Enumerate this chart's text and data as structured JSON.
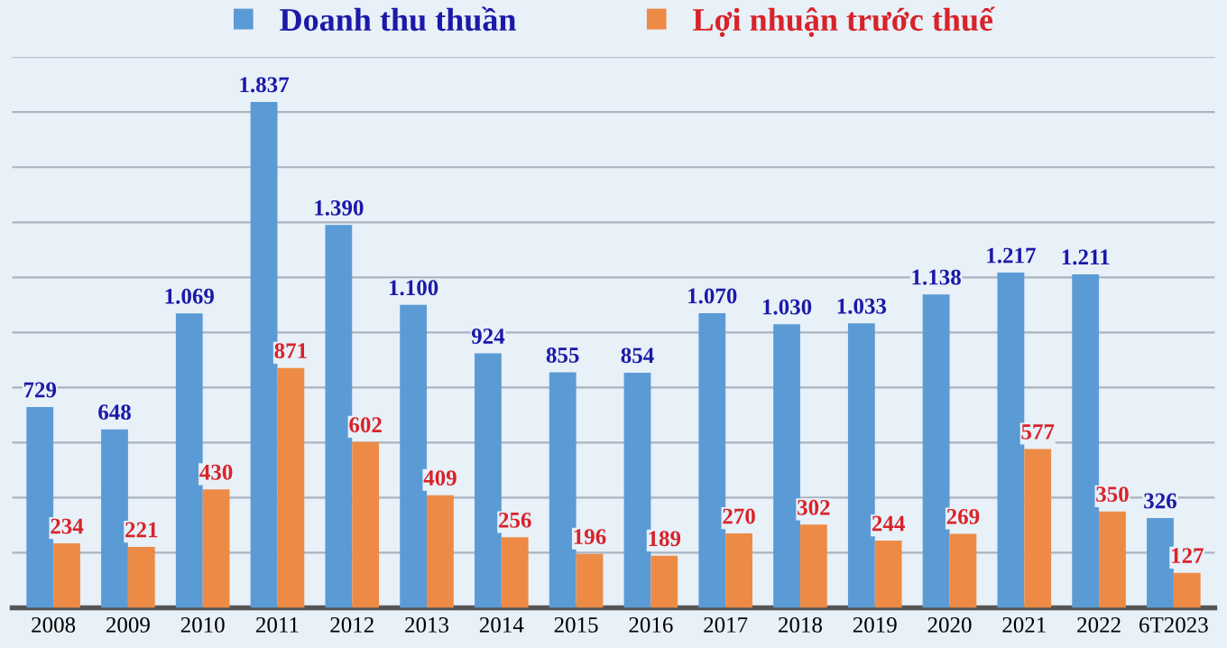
{
  "chart_data": {
    "type": "bar",
    "categories": [
      "2008",
      "2009",
      "2010",
      "2011",
      "2012",
      "2013",
      "2014",
      "2015",
      "2016",
      "2017",
      "2018",
      "2019",
      "2020",
      "2021",
      "2022",
      "6T2023"
    ],
    "series": [
      {
        "name": "Doanh thu thuần",
        "color": "#5b9bd5",
        "values": [
          729,
          648,
          1069,
          1837,
          1390,
          1100,
          924,
          855,
          854,
          1070,
          1030,
          1033,
          1138,
          1217,
          1211,
          326
        ],
        "value_labels": [
          "729",
          "648",
          "1.069",
          "1.837",
          "1.390",
          "1.100",
          "924",
          "855",
          "854",
          "1.070",
          "1.030",
          "1.033",
          "1.138",
          "1.217",
          "1.211",
          "326"
        ]
      },
      {
        "name": "Lợi nhuận trước thuế",
        "color": "#ed8b46",
        "values": [
          234,
          221,
          430,
          871,
          602,
          409,
          256,
          196,
          189,
          270,
          302,
          244,
          269,
          577,
          350,
          127
        ],
        "value_labels": [
          "234",
          "221",
          "430",
          "871",
          "602",
          "409",
          "256",
          "196",
          "189",
          "270",
          "302",
          "244",
          "269",
          "577",
          "350",
          "127"
        ]
      }
    ],
    "ylim": [
      0,
      2000
    ],
    "yticks": [
      {
        "value": 0,
        "label": null
      },
      {
        "value": 200,
        "label": null
      },
      {
        "value": 400,
        "label": null
      },
      {
        "value": 600,
        "label": null
      },
      {
        "value": 800,
        "label": null
      },
      {
        "value": 1000,
        "label": null
      },
      {
        "value": 1200,
        "label": null
      },
      {
        "value": 1400,
        "label": null
      },
      {
        "value": 1600,
        "label": null
      },
      {
        "value": 1800,
        "label": null
      },
      {
        "value": 2000,
        "label": null
      }
    ],
    "tick_labels": "x",
    "grid": "y",
    "legend": "top"
  }
}
